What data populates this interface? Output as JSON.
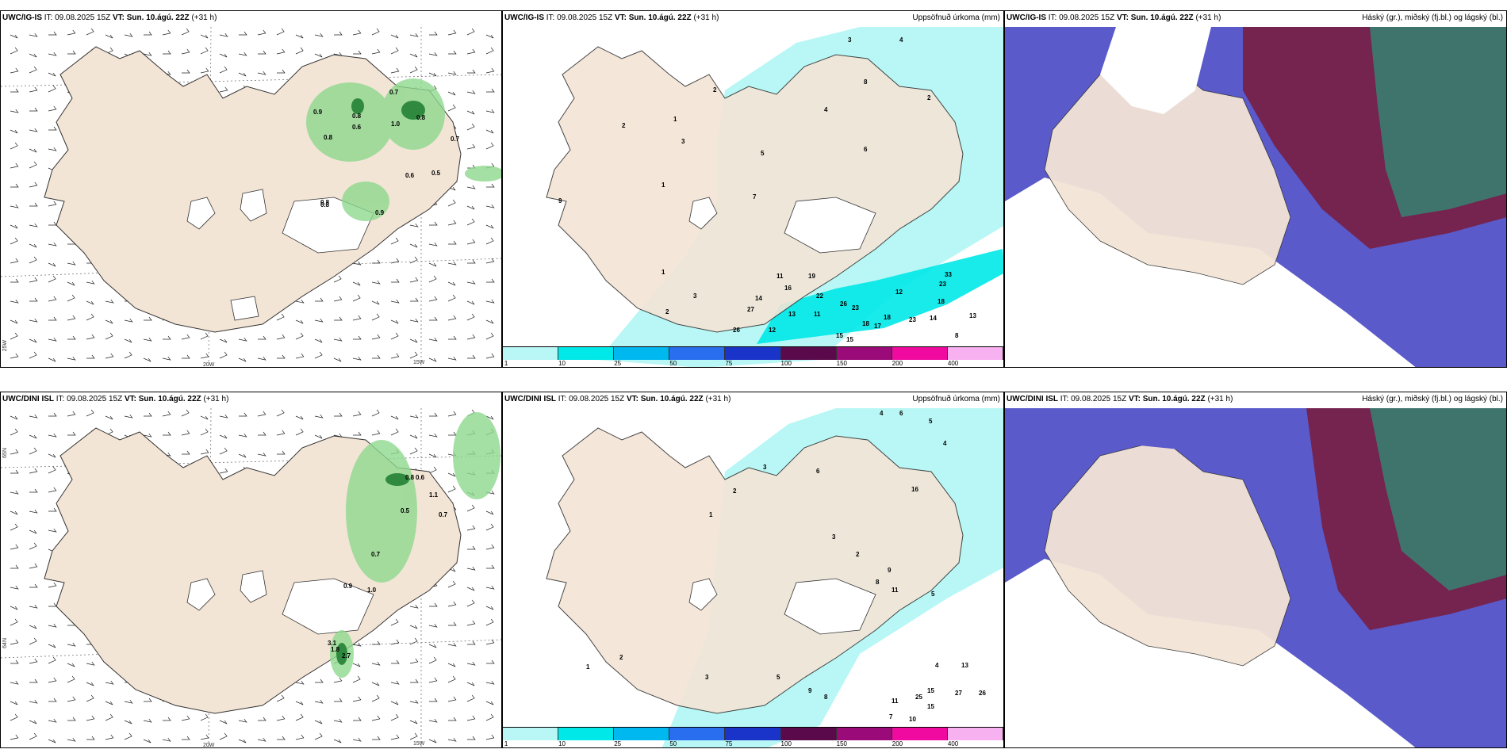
{
  "panels": {
    "top_left": {
      "model": "UWC/IG-IS",
      "it_label": "IT:",
      "it_value": "09.08.2025 15Z",
      "vt_label": "VT:",
      "vt_value": "Sun. 10.ágú. 22Z",
      "lead": "(+31 h)"
    },
    "top_mid": {
      "model": "UWC/IG-IS",
      "it_label": "IT:",
      "it_value": "09.08.2025 15Z",
      "vt_label": "VT:",
      "vt_value": "Sun. 10.ágú. 22Z",
      "lead": "(+31 h)",
      "title_right": "Uppsöfnuð úrkoma (mm)"
    },
    "top_right": {
      "model": "UWC/IG-IS",
      "it_label": "IT:",
      "it_value": "09.08.2025 15Z",
      "vt_label": "VT:",
      "vt_value": "Sun. 10.ágú. 22Z",
      "lead": "(+31 h)",
      "title_right": "Háský (gr.), miðský (fj.bl.) og lágský (bl.)"
    },
    "bot_left": {
      "model": "UWC/DINI ISL",
      "it_label": "IT:",
      "it_value": "09.08.2025 15Z",
      "vt_label": "VT:",
      "vt_value": "Sun. 10.ágú. 22Z",
      "lead": "(+31 h)"
    },
    "bot_mid": {
      "model": "UWC/DINI ISL",
      "it_label": "IT:",
      "it_value": "09.08.2025 15Z",
      "vt_label": "VT:",
      "vt_value": "Sun. 10.ágú. 22Z",
      "lead": "(+31 h)",
      "title_right": "Uppsöfnuð úrkoma (mm)"
    },
    "bot_right": {
      "model": "UWC/DINI ISL",
      "it_label": "IT:",
      "it_value": "09.08.2025 15Z",
      "vt_label": "VT:",
      "vt_value": "Sun. 10.ágú. 22Z",
      "lead": "(+31 h)",
      "title_right": "Háský (gr.), miðský (fj.bl.) og lágský (bl.)"
    }
  },
  "axes": {
    "lon_20": "20W",
    "lon_15": "15W",
    "lat_65": "65N",
    "lat_64": "64N",
    "lon_25": "25W"
  },
  "colorbar": {
    "labels": [
      "1",
      "10",
      "25",
      "50",
      "75",
      "100",
      "150",
      "200",
      "400"
    ],
    "colors": [
      "#b8f7f5",
      "#00e8e8",
      "#00b8f0",
      "#2a6ef0",
      "#1a33c8",
      "#5a0a4a",
      "#9a0a78",
      "#f00aa0",
      "#f7b0f0"
    ]
  },
  "values": {
    "top_left": [
      "0.7",
      "0.9",
      "0.8",
      "0.8",
      "0.6",
      "1.0",
      "0.8",
      "0.7",
      "0.8",
      "0.6",
      "0.5",
      "0.8",
      "0.9"
    ],
    "top_mid": [
      "3",
      "4",
      "2",
      "1",
      "3",
      "1",
      "2",
      "5",
      "7",
      "4",
      "6",
      "2",
      "9",
      "1",
      "11",
      "16",
      "19",
      "22",
      "26",
      "23",
      "33",
      "23",
      "18",
      "18",
      "23",
      "14",
      "13",
      "12",
      "11",
      "14",
      "27",
      "13",
      "26",
      "12",
      "18",
      "17",
      "15",
      "15",
      "8",
      "3",
      "8",
      "2"
    ],
    "bot_left": [
      "0.8",
      "0.6",
      "1.1",
      "0.5",
      "0.7",
      "0.7",
      "0.9",
      "1.0",
      "3.1",
      "2.7",
      "1.8"
    ],
    "bot_mid": [
      "4",
      "6",
      "5",
      "4",
      "3",
      "2",
      "1",
      "6",
      "3",
      "2",
      "16",
      "11",
      "9",
      "8",
      "5",
      "4",
      "13",
      "15",
      "27",
      "26",
      "25",
      "15",
      "11",
      "10",
      "7",
      "8",
      "9",
      "5",
      "3",
      "2",
      "1"
    ]
  },
  "colors": {
    "land": "#f3e5d6",
    "precip_light": "#b8f7f5",
    "precip_mid": "#00e8e8",
    "cloud_low": "#5a5acb",
    "cloud_mid": "#7a1a3a",
    "cloud_high": "#1aaa80",
    "precip_green": "#8ed88e"
  }
}
